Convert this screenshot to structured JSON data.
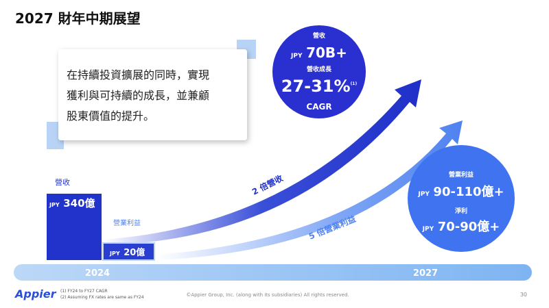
{
  "header": {
    "title": "2027 財年中期展望"
  },
  "callout": {
    "lines": [
      "在持續投資擴展的同時，實現",
      "獲利與可持續的成長，並兼顧",
      "股東價值的提升。"
    ]
  },
  "baseline": {
    "revenue": {
      "label": "營收",
      "currency": "JPY",
      "amount": "340億"
    },
    "operating_profit": {
      "label": "營業利益",
      "currency": "JPY",
      "amount": "20億"
    }
  },
  "arrows": {
    "revenue": "2 倍營收",
    "profit": "5 倍營業利益"
  },
  "target_revenue": {
    "label": "營收",
    "currency": "JPY",
    "amount": "70B+",
    "growth_label": "營收成長",
    "growth": "27-31%",
    "note": "(1)",
    "metric": "CAGR"
  },
  "target_profit": {
    "op_label": "營業利益",
    "op_currency": "JPY",
    "op_amount": "90-110億+",
    "net_label": "淨利",
    "net_currency": "JPY",
    "net_amount": "70-90億+"
  },
  "timeline": {
    "start": "2024",
    "end": "2027"
  },
  "footer": {
    "logo": "Appier",
    "notes": [
      "(1) FY24 to FY27 CAGR",
      "(2) Assuming FX rates are same as FY24"
    ],
    "copyright": "©Appier Group, Inc. (along with its subsidiaries) All rights reserved.",
    "page": "30"
  }
}
